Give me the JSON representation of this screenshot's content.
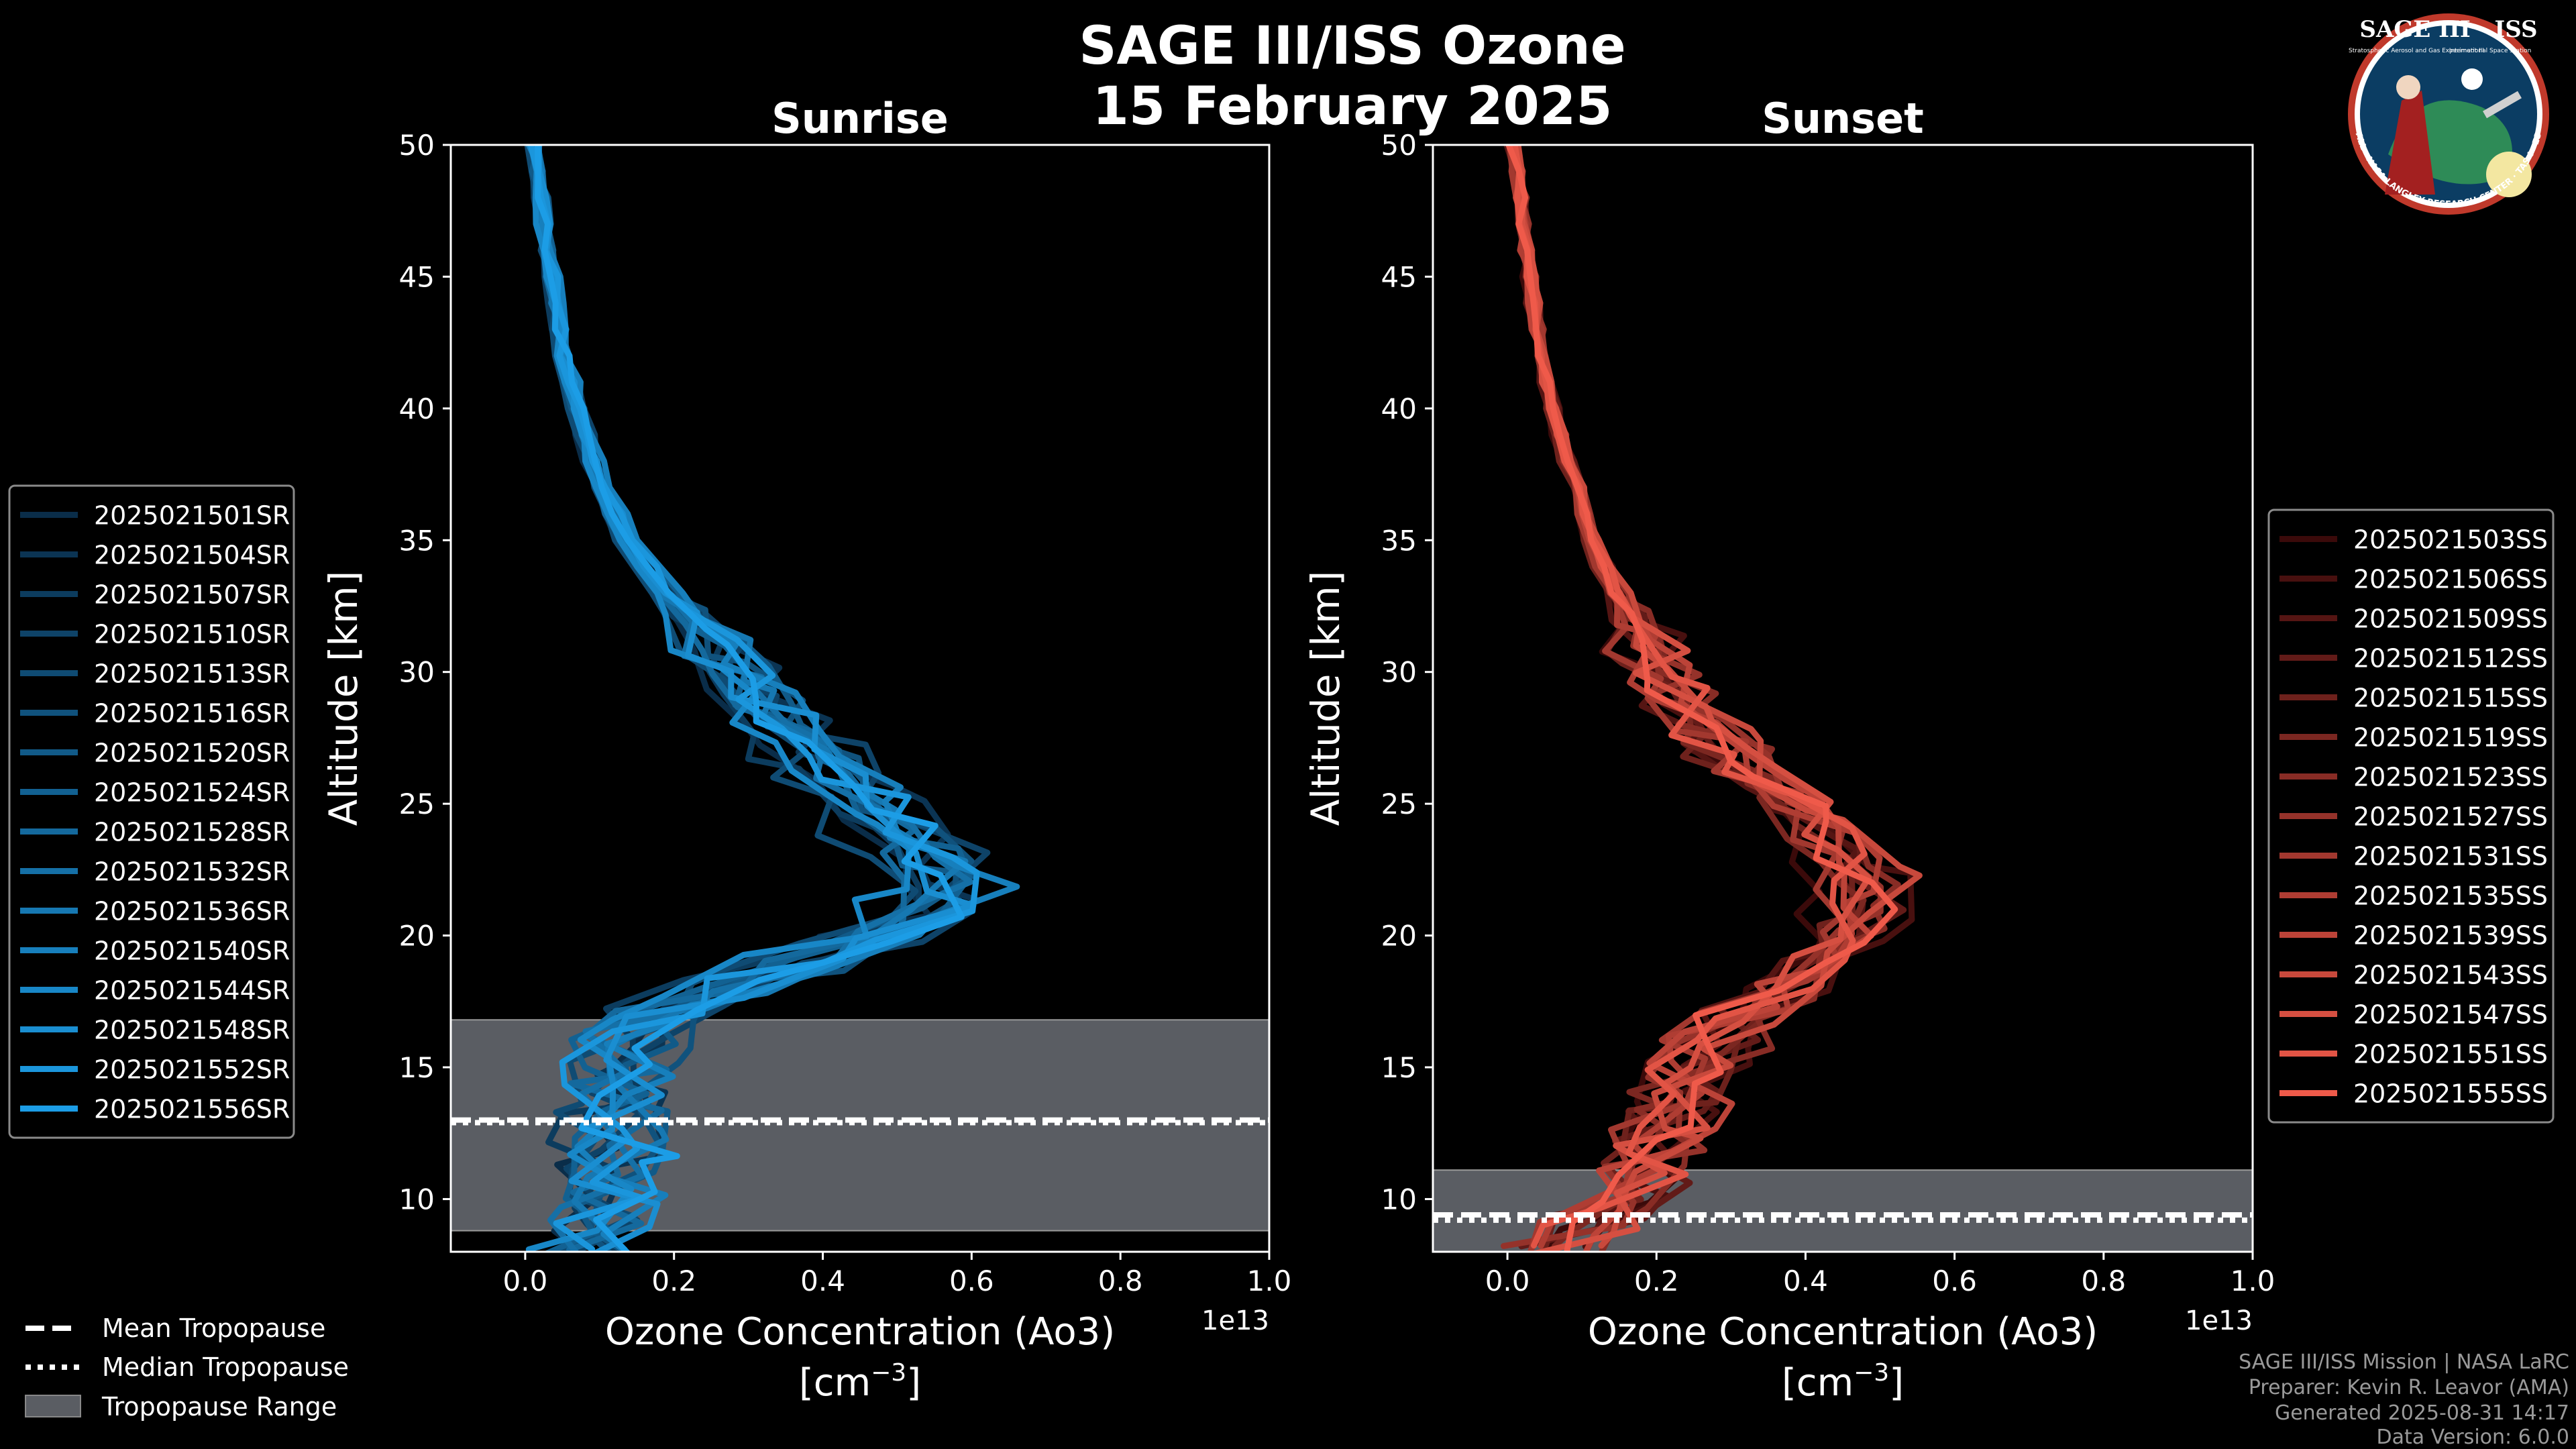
{
  "figure": {
    "title_line1": "SAGE III/ISS Ozone",
    "title_line2": "15 February 2025",
    "background": "#000000",
    "logo": {
      "top_text": "SAGE III · ISS",
      "small_text_left": "Stratospheric Aerosol and Gas Experiment III",
      "small_text_right": "International Space Station",
      "ring_text": "BALL · NASA LANGLEY RESEARCH CENTER · TAS-I · ESA",
      "ring_color": "#c0392b",
      "inner_color": "#0b3d63"
    },
    "footer": {
      "line1": "SAGE III/ISS Mission | NASA LaRC",
      "line2": "Preparer: Kevin R. Leavor (AMA)",
      "line3": "Generated 2025-08-31 14:17",
      "line4": "Data Version: 6.0.0"
    },
    "bottom_legend": [
      {
        "label": "Mean Tropopause",
        "style": "dashed"
      },
      {
        "label": "Median Tropopause",
        "style": "dotted"
      },
      {
        "label": "Tropopause Range",
        "style": "patch"
      }
    ]
  },
  "chart_data": [
    {
      "type": "line",
      "title": "Sunrise",
      "xlabel": "Ozone Concentration (Ao3)",
      "xlabel_units": "[cm",
      "xlabel_exp": "−3",
      "xlabel_close": "]",
      "ylabel": "Altitude [km]",
      "x_multiplier": "1e13",
      "xlim": [
        -0.1,
        1.0
      ],
      "ylim": [
        8,
        50
      ],
      "xticks": [
        0.0,
        0.2,
        0.4,
        0.6,
        0.8,
        1.0
      ],
      "xtick_labels": [
        "0.0",
        "0.2",
        "0.4",
        "0.6",
        "0.8",
        "1.0"
      ],
      "yticks": [
        10,
        15,
        20,
        25,
        30,
        35,
        40,
        45,
        50
      ],
      "ytick_labels": [
        "10",
        "15",
        "20",
        "25",
        "30",
        "35",
        "40",
        "45",
        "50"
      ],
      "tropopause": {
        "min": 8.8,
        "max": 16.8,
        "mean": 13.0,
        "median": 12.9,
        "range_color": "#5a5d63"
      },
      "color_start": "#0a2d49",
      "color_end": "#1c9de6",
      "legend_position": "left",
      "profile_shape": {
        "altitudes": [
          8,
          9,
          10,
          11,
          12,
          13,
          14,
          15,
          16,
          17,
          18,
          19,
          20,
          21,
          22,
          23,
          24,
          25,
          26,
          27,
          28,
          29,
          30,
          31,
          32,
          33,
          34,
          35,
          36,
          37,
          38,
          39,
          40,
          41,
          42,
          43,
          44,
          45,
          46,
          47,
          48,
          49,
          50
        ],
        "ozone": [
          0.07,
          0.09,
          0.1,
          0.1,
          0.11,
          0.11,
          0.11,
          0.11,
          0.12,
          0.17,
          0.25,
          0.36,
          0.46,
          0.53,
          0.55,
          0.53,
          0.49,
          0.45,
          0.41,
          0.37,
          0.33,
          0.3,
          0.27,
          0.24,
          0.21,
          0.185,
          0.16,
          0.14,
          0.12,
          0.105,
          0.09,
          0.08,
          0.07,
          0.06,
          0.05,
          0.045,
          0.04,
          0.035,
          0.03,
          0.025,
          0.02,
          0.015,
          0.01
        ]
      },
      "series": [
        {
          "name": "2025021501SR",
          "scale": 0.92,
          "shift": 0.01
        },
        {
          "name": "2025021504SR",
          "scale": 1.02,
          "shift": 0.03
        },
        {
          "name": "2025021507SR",
          "scale": 0.96,
          "shift": -0.01
        },
        {
          "name": "2025021510SR",
          "scale": 1.05,
          "shift": 0.02
        },
        {
          "name": "2025021513SR",
          "scale": 0.9,
          "shift": 0.0
        },
        {
          "name": "2025021516SR",
          "scale": 1.0,
          "shift": 0.04
        },
        {
          "name": "2025021520SR",
          "scale": 0.98,
          "shift": 0.015
        },
        {
          "name": "2025021524SR",
          "scale": 1.08,
          "shift": -0.005
        },
        {
          "name": "2025021528SR",
          "scale": 0.94,
          "shift": 0.025
        },
        {
          "name": "2025021532SR",
          "scale": 1.03,
          "shift": 0.005
        },
        {
          "name": "2025021536SR",
          "scale": 0.97,
          "shift": 0.035
        },
        {
          "name": "2025021540SR",
          "scale": 1.1,
          "shift": 0.01
        },
        {
          "name": "2025021544SR",
          "scale": 0.95,
          "shift": -0.015
        },
        {
          "name": "2025021548SR",
          "scale": 1.01,
          "shift": 0.02
        },
        {
          "name": "2025021552SR",
          "scale": 1.06,
          "shift": 0.0
        },
        {
          "name": "2025021556SR",
          "scale": 0.99,
          "shift": 0.03
        }
      ]
    },
    {
      "type": "line",
      "title": "Sunset",
      "xlabel": "Ozone Concentration (Ao3)",
      "xlabel_units": "[cm",
      "xlabel_exp": "−3",
      "xlabel_close": "]",
      "ylabel": "Altitude [km]",
      "x_multiplier": "1e13",
      "xlim": [
        -0.1,
        1.0
      ],
      "ylim": [
        8,
        50
      ],
      "xticks": [
        0.0,
        0.2,
        0.4,
        0.6,
        0.8,
        1.0
      ],
      "xtick_labels": [
        "0.0",
        "0.2",
        "0.4",
        "0.6",
        "0.8",
        "1.0"
      ],
      "yticks": [
        10,
        15,
        20,
        25,
        30,
        35,
        40,
        45,
        50
      ],
      "ytick_labels": [
        "10",
        "15",
        "20",
        "25",
        "30",
        "35",
        "40",
        "45",
        "50"
      ],
      "tropopause": {
        "min": 8.0,
        "max": 11.1,
        "mean": 9.4,
        "median": 9.2,
        "range_color": "#5a5d63"
      },
      "color_start": "#3b0a0a",
      "color_end": "#ef5a4a",
      "legend_position": "right",
      "profile_shape": {
        "altitudes": [
          8,
          9,
          10,
          11,
          12,
          13,
          14,
          15,
          16,
          17,
          18,
          19,
          20,
          21,
          22,
          23,
          24,
          25,
          26,
          27,
          28,
          29,
          30,
          31,
          32,
          33,
          34,
          35,
          36,
          37,
          38,
          39,
          40,
          41,
          42,
          43,
          44,
          45,
          46,
          47,
          48,
          49,
          50
        ],
        "ozone": [
          0.06,
          0.1,
          0.14,
          0.17,
          0.19,
          0.2,
          0.22,
          0.24,
          0.27,
          0.31,
          0.36,
          0.41,
          0.45,
          0.47,
          0.47,
          0.45,
          0.42,
          0.38,
          0.33,
          0.29,
          0.25,
          0.22,
          0.2,
          0.18,
          0.16,
          0.145,
          0.13,
          0.115,
          0.1,
          0.09,
          0.08,
          0.07,
          0.06,
          0.052,
          0.045,
          0.04,
          0.034,
          0.029,
          0.024,
          0.02,
          0.016,
          0.012,
          0.008
        ]
      },
      "series": [
        {
          "name": "2025021503SS",
          "scale": 0.93,
          "shift": 0.0
        },
        {
          "name": "2025021506SS",
          "scale": 1.02,
          "shift": 0.02
        },
        {
          "name": "2025021509SS",
          "scale": 0.96,
          "shift": -0.01
        },
        {
          "name": "2025021512SS",
          "scale": 1.05,
          "shift": 0.01
        },
        {
          "name": "2025021515SS",
          "scale": 0.91,
          "shift": 0.015
        },
        {
          "name": "2025021519SS",
          "scale": 1.0,
          "shift": -0.005
        },
        {
          "name": "2025021523SS",
          "scale": 0.98,
          "shift": 0.025
        },
        {
          "name": "2025021527SS",
          "scale": 1.07,
          "shift": 0.0
        },
        {
          "name": "2025021531SS",
          "scale": 0.95,
          "shift": 0.01
        },
        {
          "name": "2025021535SS",
          "scale": 1.03,
          "shift": -0.01
        },
        {
          "name": "2025021539SS",
          "scale": 0.97,
          "shift": 0.02
        },
        {
          "name": "2025021543SS",
          "scale": 1.09,
          "shift": 0.005
        },
        {
          "name": "2025021547SS",
          "scale": 1.01,
          "shift": 0.015
        },
        {
          "name": "2025021551SS",
          "scale": 1.04,
          "shift": -0.005
        },
        {
          "name": "2025021555SS",
          "scale": 0.99,
          "shift": 0.01
        }
      ]
    }
  ]
}
